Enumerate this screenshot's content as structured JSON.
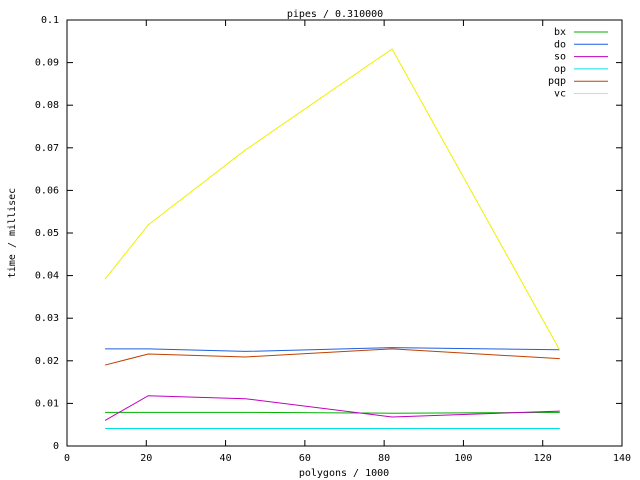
{
  "chart_data": {
    "type": "line",
    "title": "pipes / 0.310000",
    "x_label": "polygons / 1000",
    "y_label": "time / millisec",
    "x": [
      9.6,
      20.5,
      45,
      82,
      124.3
    ],
    "series": [
      {
        "name": "bx",
        "color": "#00b000",
        "values": [
          0.0079,
          0.0079,
          0.0079,
          0.0077,
          0.0079
        ]
      },
      {
        "name": "do",
        "color": "#1f5fe0",
        "values": [
          0.0228,
          0.0228,
          0.0222,
          0.0231,
          0.0226
        ]
      },
      {
        "name": "so",
        "color": "#c000c0",
        "values": [
          0.006,
          0.0118,
          0.0111,
          0.0068,
          0.0082
        ]
      },
      {
        "name": "op",
        "color": "#00e0e0",
        "values": [
          0.0041,
          0.0041,
          0.0041,
          0.0041,
          0.0041
        ]
      },
      {
        "name": "pqp",
        "color": "#c04000",
        "values": [
          0.019,
          0.0216,
          0.0209,
          0.0228,
          0.0205
        ]
      },
      {
        "name": "vc",
        "color": "#f0f000",
        "values": [
          0.0392,
          0.0519,
          0.0695,
          0.0932,
          0.0225
        ]
      }
    ],
    "xlim": [
      0,
      140
    ],
    "xticks": [
      0,
      20,
      40,
      60,
      80,
      100,
      120,
      140
    ],
    "ylim": [
      0,
      0.1
    ],
    "yticks": [
      0,
      0.01,
      0.02,
      0.03,
      0.04,
      0.05,
      0.06,
      0.07,
      0.08,
      0.09,
      0.1
    ],
    "legend": "top-right"
  }
}
